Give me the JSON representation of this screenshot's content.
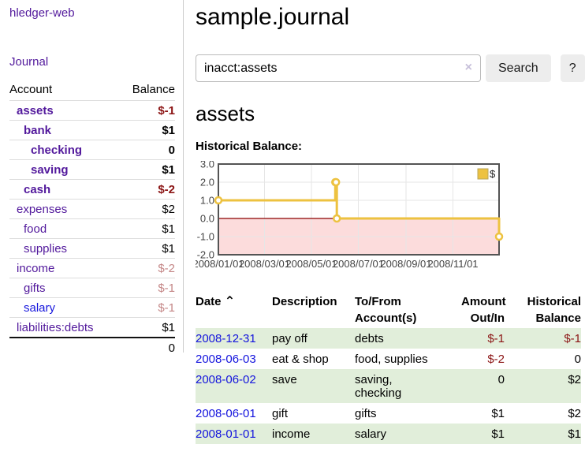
{
  "app": {
    "title": "hledger-web"
  },
  "colors": {
    "purple_link": "#52199c",
    "blue_link": "#1616dd",
    "negative_red": "#8b1414",
    "faded_negative": "#c48686",
    "row_stripe_green": "#e1eeda",
    "button_bg": "#ededed",
    "divider": "#cccccc"
  },
  "sidebar": {
    "journal_label": "Journal",
    "account_header": "Account",
    "balance_header": "Balance",
    "accounts": [
      {
        "account": "assets",
        "balance": "$-1",
        "indent": 0,
        "bold": true,
        "account_style": "purple",
        "balance_style": "negative"
      },
      {
        "account": "bank",
        "balance": "$1",
        "indent": 1,
        "bold": true,
        "account_style": "purple",
        "balance_style": "normal"
      },
      {
        "account": "checking",
        "balance": "0",
        "indent": 2,
        "bold": true,
        "account_style": "purple",
        "balance_style": "normal"
      },
      {
        "account": "saving",
        "balance": "$1",
        "indent": 2,
        "bold": true,
        "account_style": "purple",
        "balance_style": "normal"
      },
      {
        "account": "cash",
        "balance": "$-2",
        "indent": 1,
        "bold": true,
        "account_style": "purple",
        "balance_style": "negative"
      },
      {
        "account": "expenses",
        "balance": "$2",
        "indent": 0,
        "bold": false,
        "account_style": "purple",
        "balance_style": "normal"
      },
      {
        "account": "food",
        "balance": "$1",
        "indent": 1,
        "bold": false,
        "account_style": "purple",
        "balance_style": "normal"
      },
      {
        "account": "supplies",
        "balance": "$1",
        "indent": 1,
        "bold": false,
        "account_style": "purple",
        "balance_style": "normal"
      },
      {
        "account": "income",
        "balance": "$-2",
        "indent": 0,
        "bold": false,
        "account_style": "purple",
        "balance_style": "faded"
      },
      {
        "account": "gifts",
        "balance": "$-1",
        "indent": 1,
        "bold": false,
        "account_style": "purple",
        "balance_style": "faded"
      },
      {
        "account": "salary",
        "balance": "$-1",
        "indent": 1,
        "bold": false,
        "account_style": "blue",
        "balance_style": "faded"
      },
      {
        "account": "liabilities:debts",
        "balance": "$1",
        "indent": 0,
        "bold": false,
        "account_style": "purple",
        "balance_style": "normal"
      }
    ],
    "total": "0"
  },
  "main": {
    "title": "sample.journal",
    "search": {
      "value": "inacct:assets",
      "clear_icon": "×",
      "button_label": "Search",
      "help_label": "?"
    },
    "account_heading": "assets",
    "chart_label": "Historical Balance:"
  },
  "chart_data": {
    "type": "line",
    "step": true,
    "title": "Historical Balance:",
    "legend": [
      {
        "label": "$",
        "color": "#edc240"
      }
    ],
    "legend_position": "top-right",
    "grid": true,
    "ylim": [
      -2,
      3
    ],
    "x_range": [
      "2008-01-01",
      "2008-12-31"
    ],
    "y_ticks": [
      {
        "label": "3.0",
        "value": 3
      },
      {
        "label": "2.0",
        "value": 2
      },
      {
        "label": "1.0",
        "value": 1
      },
      {
        "label": "0.0",
        "value": 0
      },
      {
        "label": "-1.0",
        "value": -1
      },
      {
        "label": "-2.0",
        "value": -2
      }
    ],
    "x_ticks": [
      {
        "label": "2008/01/01",
        "date": "2008-01-01"
      },
      {
        "label": "2008/03/01",
        "date": "2008-03-01"
      },
      {
        "label": "2008/05/01",
        "date": "2008-05-01"
      },
      {
        "label": "2008/07/01",
        "date": "2008-07-01"
      },
      {
        "label": "2008/09/01",
        "date": "2008-09-01"
      },
      {
        "label": "2008/11/01",
        "date": "2008-11-01"
      }
    ],
    "series": [
      {
        "name": "$",
        "color": "#edc240",
        "points": [
          [
            "2008-01-01",
            1.0
          ],
          [
            "2008-06-01",
            2.0
          ],
          [
            "2008-06-02",
            2.0
          ],
          [
            "2008-06-03",
            0.0
          ],
          [
            "2008-12-31",
            -1.0
          ]
        ]
      }
    ],
    "colors": {
      "line": "#edc240",
      "point_fill": "#ffffff",
      "negative_region": "#fcdcdc",
      "zero_line": "#8b0000",
      "grid": "#e6e6e6",
      "border": "#545454",
      "tick_text": "#444444"
    }
  },
  "register": {
    "headers": [
      "Date",
      "Description",
      "To/From Account(s)",
      "Amount Out/In",
      "Historical Balance"
    ],
    "sort_icon": "⌃",
    "rows": [
      {
        "date": "2008-12-31",
        "description": "pay off",
        "accounts": "debts",
        "amount": "$-1",
        "amount_negative": true,
        "balance": "$-1",
        "balance_negative": true
      },
      {
        "date": "2008-06-03",
        "description": "eat & shop",
        "accounts": "food, supplies",
        "amount": "$-2",
        "amount_negative": true,
        "balance": "0",
        "balance_negative": false
      },
      {
        "date": "2008-06-02",
        "description": "save",
        "accounts": "saving,\nchecking",
        "amount": "0",
        "amount_negative": false,
        "balance": "$2",
        "balance_negative": false
      },
      {
        "date": "2008-06-01",
        "description": "gift",
        "accounts": "gifts",
        "amount": "$1",
        "amount_negative": false,
        "balance": "$2",
        "balance_negative": false
      },
      {
        "date": "2008-01-01",
        "description": "income",
        "accounts": "salary",
        "amount": "$1",
        "amount_negative": false,
        "balance": "$1",
        "balance_negative": false
      }
    ]
  }
}
